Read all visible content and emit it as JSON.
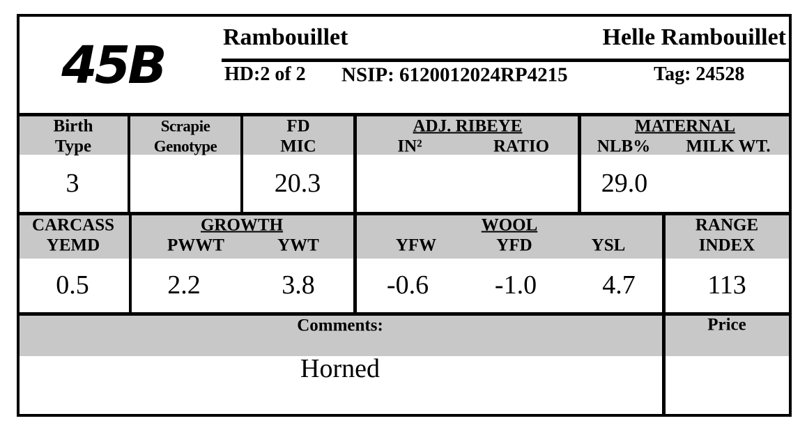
{
  "header": {
    "lot": "45B",
    "breed": "Rambouillet",
    "consignor": "Helle Rambouillet",
    "hd": "HD:2 of 2",
    "nsip": "NSIP: 6120012024RP4215",
    "tag": "Tag: 24528"
  },
  "row1": {
    "birth_type": {
      "label": [
        "Birth",
        "Type"
      ],
      "value": "3"
    },
    "scrapie": {
      "label": [
        "Scrapie",
        "Genotype"
      ]
    },
    "fd": {
      "label": [
        "FD",
        "MIC"
      ],
      "value": "20.3"
    },
    "ribeye": {
      "title": "ADJ. RIBEYE",
      "columns": [
        "IN²",
        "RATIO"
      ]
    },
    "maternal": {
      "title": "MATERNAL",
      "columns": [
        "NLB%",
        "MILK WT."
      ],
      "values": [
        "29.0"
      ]
    }
  },
  "row2": {
    "carcass": {
      "label": [
        "CARCASS",
        "YEMD"
      ],
      "value": "0.5"
    },
    "growth": {
      "title": "GROWTH",
      "columns": [
        "PWWT",
        "YWT"
      ],
      "values": [
        "2.2",
        "3.8"
      ]
    },
    "wool": {
      "title": "WOOL",
      "columns": [
        "YFW",
        "YFD",
        "YSL"
      ],
      "values": [
        "-0.6",
        "-1.0",
        "4.7"
      ]
    },
    "range": {
      "label": [
        "RANGE",
        "INDEX"
      ],
      "value": "113"
    }
  },
  "row3": {
    "comments_label": "Comments:",
    "comments": "Horned",
    "price_label": "Price"
  }
}
